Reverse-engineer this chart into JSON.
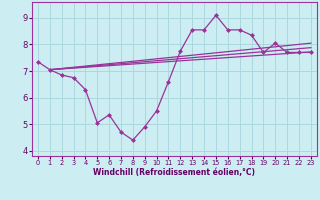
{
  "xlabel": "Windchill (Refroidissement éolien,°C)",
  "bg_color": "#cceef2",
  "grid_color": "#aad8de",
  "line_color": "#993399",
  "text_color": "#660066",
  "spine_color": "#993399",
  "xlim": [
    -0.5,
    23.5
  ],
  "ylim": [
    3.8,
    9.6
  ],
  "yticks": [
    4,
    5,
    6,
    7,
    8,
    9
  ],
  "xticks": [
    0,
    1,
    2,
    3,
    4,
    5,
    6,
    7,
    8,
    9,
    10,
    11,
    12,
    13,
    14,
    15,
    16,
    17,
    18,
    19,
    20,
    21,
    22,
    23
  ],
  "main_x": [
    0,
    1,
    2,
    3,
    4,
    5,
    6,
    7,
    8,
    9,
    10,
    11,
    12,
    13,
    14,
    15,
    16,
    17,
    18,
    19,
    20,
    21,
    22,
    23
  ],
  "main_y": [
    7.35,
    7.05,
    6.85,
    6.75,
    6.3,
    5.05,
    5.35,
    4.7,
    4.4,
    4.9,
    5.5,
    6.6,
    7.75,
    8.55,
    8.55,
    9.1,
    8.55,
    8.55,
    8.35,
    7.7,
    8.05,
    7.7,
    7.7,
    7.7
  ],
  "line1_x": [
    1,
    23
  ],
  "line1_y": [
    7.05,
    7.72
  ],
  "line2_x": [
    1,
    23
  ],
  "line2_y": [
    7.05,
    7.88
  ],
  "line3_x": [
    1,
    23
  ],
  "line3_y": [
    7.05,
    8.05
  ]
}
